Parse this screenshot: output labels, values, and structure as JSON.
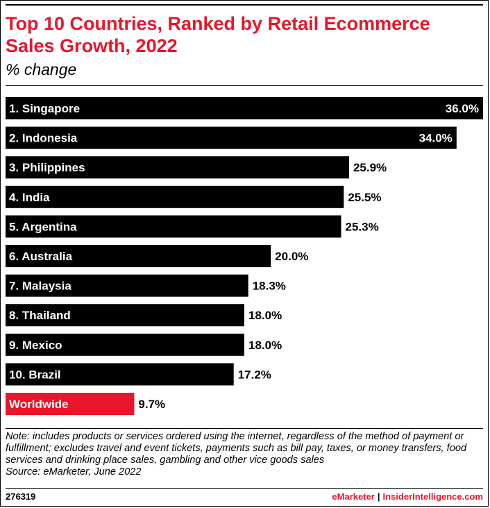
{
  "title": "Top 10 Countries, Ranked by Retail Ecommerce Sales Growth, 2022",
  "subtitle": "% change",
  "note": "Note: includes products or services ordered using the internet, regardless of the method of payment or fulfillment; excludes travel and event tickets, payments such as bill pay, taxes, or money transfers, food services and drinking place sales, gambling and other vice goods sales",
  "source": "Source: eMarketer, June 2022",
  "footer": {
    "chart_id": "276319",
    "brand_left": "eMarketer",
    "separator": "|",
    "brand_right": "InsiderIntelligence.com"
  },
  "colors": {
    "bar": "#000000",
    "highlight": "#e8152b",
    "label_inside": "#ffffff",
    "label_outside": "#000000"
  },
  "chart_data": {
    "type": "bar",
    "orientation": "horizontal",
    "title": "Top 10 Countries, Ranked by Retail Ecommerce Sales Growth, 2022",
    "subtitle": "% change",
    "categories": [
      "1. Singapore",
      "2. Indonesia",
      "3. Philippines",
      "4. India",
      "5. Argentina",
      "6. Australia",
      "7. Malaysia",
      "8. Thailand",
      "9. Mexico",
      "10. Brazil",
      "Worldwide"
    ],
    "values": [
      36.0,
      34.0,
      25.9,
      25.5,
      25.3,
      20.0,
      18.3,
      18.0,
      18.0,
      17.2,
      9.7
    ],
    "value_labels": [
      "36.0%",
      "34.0%",
      "25.9%",
      "25.5%",
      "25.3%",
      "20.0%",
      "18.3%",
      "18.0%",
      "18.0%",
      "17.2%",
      "9.7%"
    ],
    "highlight_categories": [
      "Worldwide"
    ],
    "xlim": [
      0,
      36.0
    ],
    "grid": false,
    "legend": "none"
  }
}
